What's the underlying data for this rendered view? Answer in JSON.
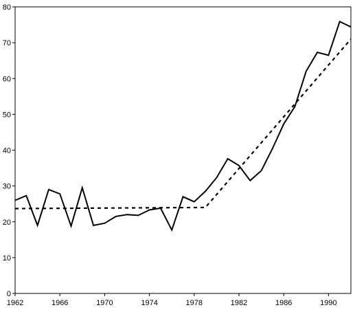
{
  "chart_data": {
    "type": "line",
    "title": "",
    "xlabel": "",
    "ylabel": "",
    "xlim": [
      1962,
      1992
    ],
    "ylim": [
      0,
      80
    ],
    "x_ticks": [
      1962,
      1966,
      1970,
      1974,
      1978,
      1982,
      1986,
      1990
    ],
    "y_ticks": [
      0,
      10,
      20,
      30,
      40,
      50,
      60,
      70,
      80
    ],
    "x_tick_labels": [
      "1962",
      "1966",
      "1970",
      "1974",
      "1978",
      "1982",
      "1986",
      "1990"
    ],
    "y_tick_labels": [
      "0",
      "10",
      "20",
      "30",
      "40",
      "50",
      "60",
      "70",
      "80"
    ],
    "grid": false,
    "legend": "none",
    "series": [
      {
        "style": "solid",
        "color": "#000000",
        "x": [
          1962,
          1963,
          1964,
          1965,
          1966,
          1967,
          1968,
          1969,
          1970,
          1971,
          1972,
          1973,
          1974,
          1975,
          1976,
          1977,
          1978,
          1979,
          1980,
          1981,
          1982,
          1983,
          1984,
          1985,
          1986,
          1987,
          1988,
          1989,
          1990,
          1991,
          1992
        ],
        "y": [
          26,
          27.3,
          19,
          29,
          27.8,
          18.8,
          29.5,
          19,
          19.6,
          21.5,
          22,
          21.8,
          23.3,
          23.8,
          17.7,
          27,
          25.6,
          28.5,
          32.3,
          37.6,
          35.7,
          31.5,
          34.3,
          40.5,
          47.3,
          52.2,
          62,
          67.3,
          66.5,
          75.9,
          74.4
        ]
      },
      {
        "style": "dashed",
        "color": "#000000",
        "x": [
          1962,
          1979,
          1992
        ],
        "y": [
          23.7,
          24,
          71
        ]
      }
    ]
  }
}
